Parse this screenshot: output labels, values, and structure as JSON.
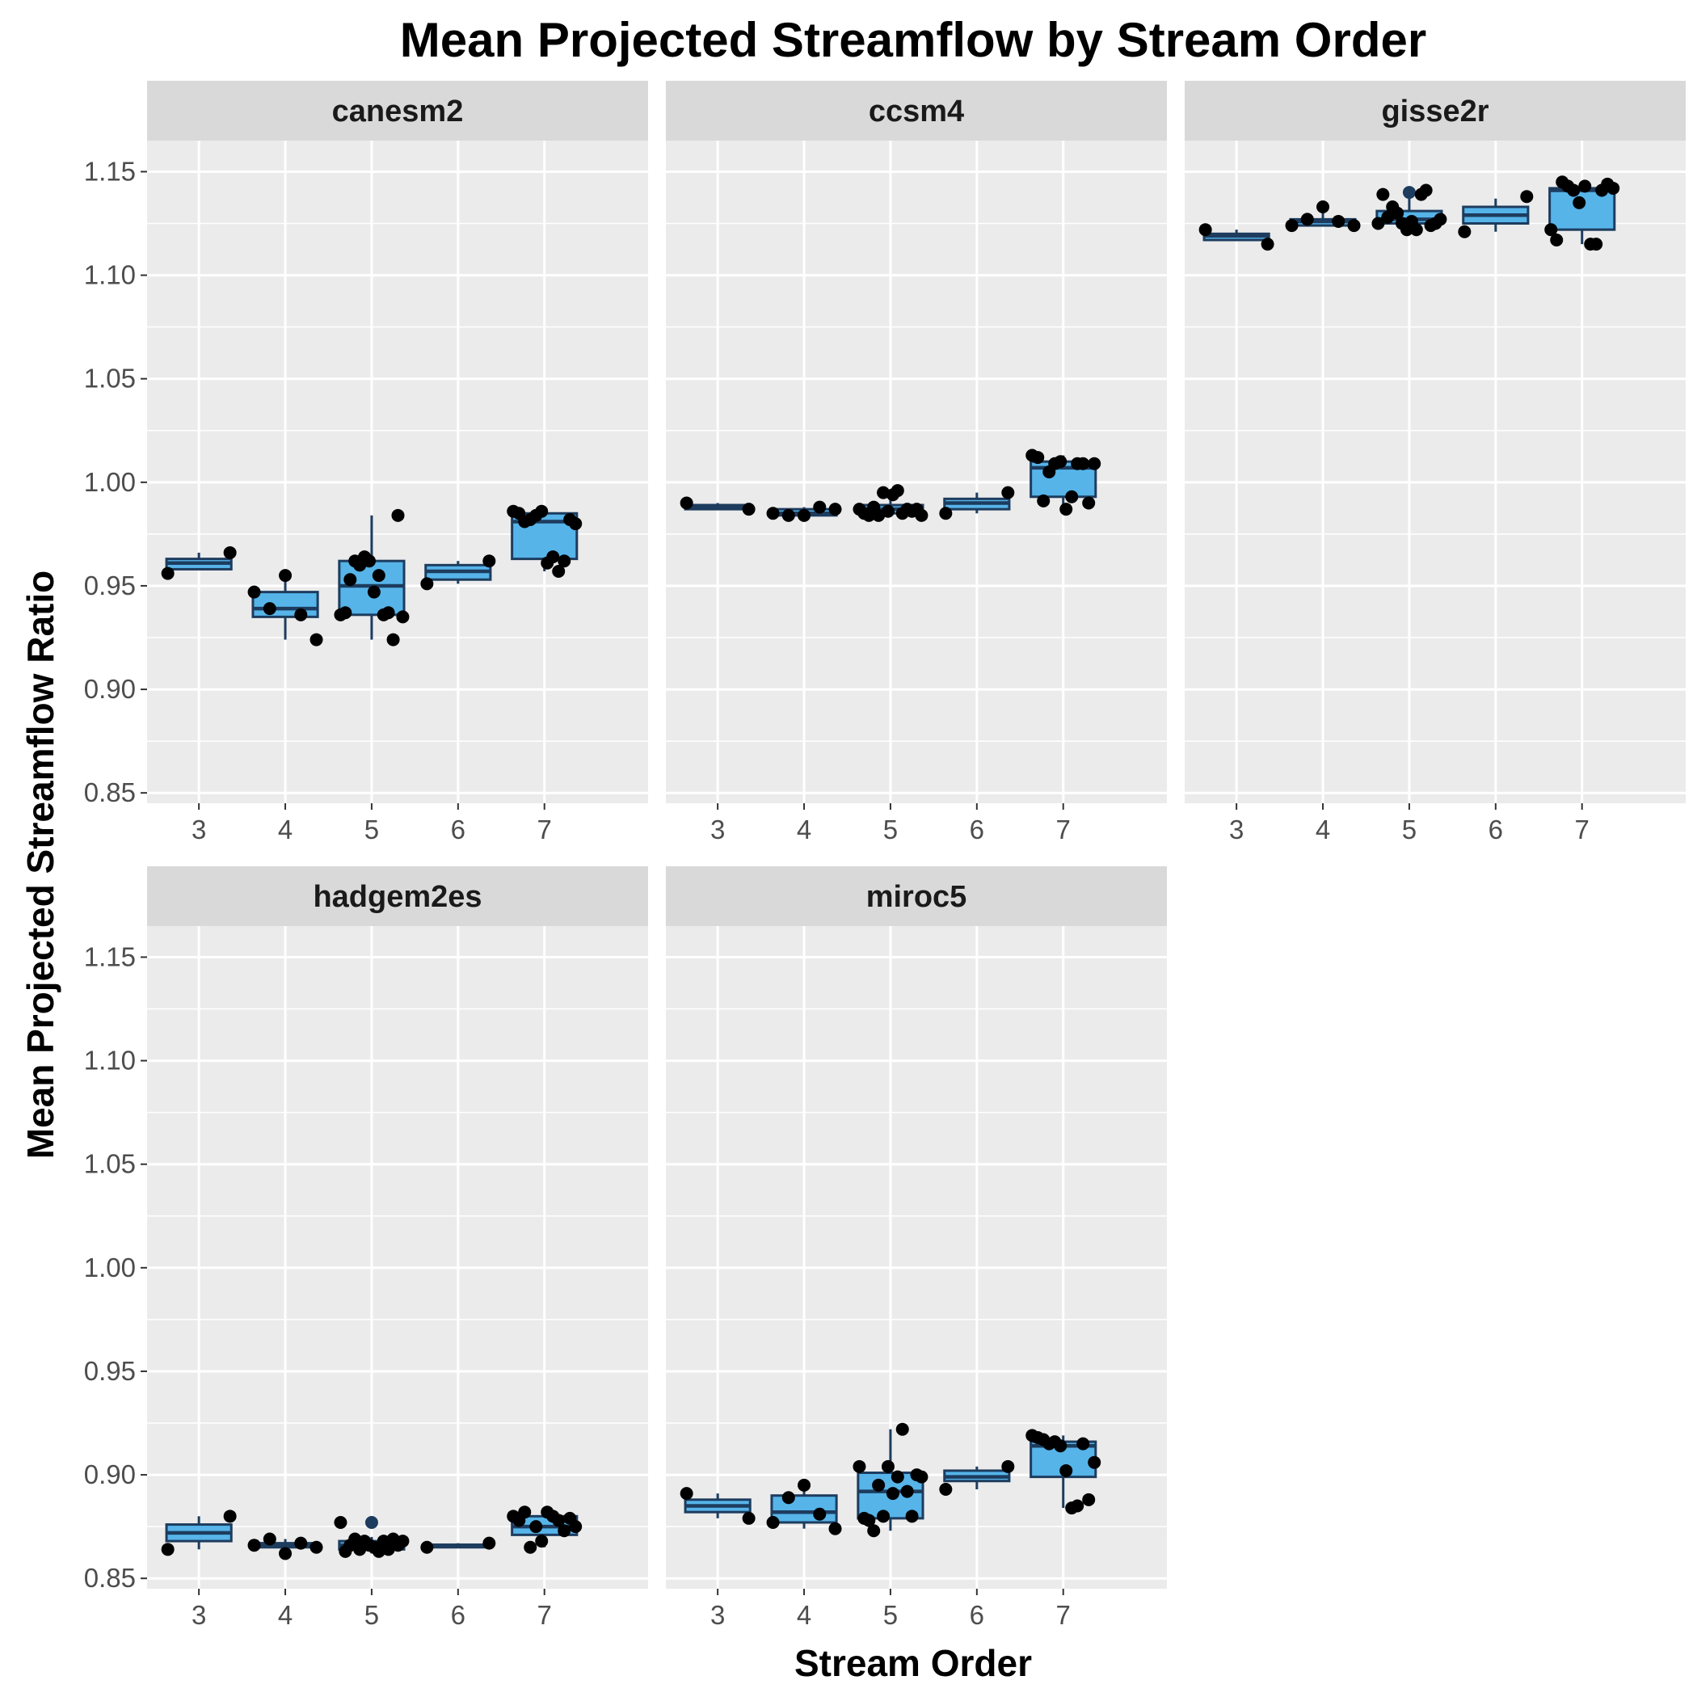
{
  "chart_data": {
    "type": "boxplot",
    "title": "Mean Projected Streamflow by Stream Order",
    "xlabel": "Stream Order",
    "ylabel": "Mean Projected Streamflow Ratio",
    "categories": [
      "3",
      "4",
      "5",
      "6",
      "7"
    ],
    "ylim": [
      0.845,
      1.165
    ],
    "yticks": [
      0.85,
      0.9,
      0.95,
      1.0,
      1.05,
      1.1,
      1.15
    ],
    "ytick_labels": [
      "0.85",
      "0.90",
      "0.95",
      "1.00",
      "1.05",
      "1.10",
      "1.15"
    ],
    "grid": true,
    "colors": {
      "box_fill": "#56B4E9",
      "box_line": "#1d3c5e",
      "outlier": "#1d3c5e",
      "points": "#000000",
      "panel_bg": "#ebebeb",
      "strip_bg": "#d9d9d9",
      "grid": "#ffffff"
    },
    "facets": [
      {
        "name": "canesm2",
        "boxes": [
          {
            "x": "3",
            "q1": 0.958,
            "median": 0.961,
            "q3": 0.963,
            "lower": 0.958,
            "upper": 0.966
          },
          {
            "x": "4",
            "q1": 0.935,
            "median": 0.939,
            "q3": 0.947,
            "lower": 0.924,
            "upper": 0.955
          },
          {
            "x": "5",
            "q1": 0.936,
            "median": 0.95,
            "q3": 0.962,
            "lower": 0.924,
            "upper": 0.984
          },
          {
            "x": "6",
            "q1": 0.953,
            "median": 0.957,
            "q3": 0.96,
            "lower": 0.951,
            "upper": 0.962
          },
          {
            "x": "7",
            "q1": 0.963,
            "median": 0.981,
            "q3": 0.985,
            "lower": 0.957,
            "upper": 0.986
          }
        ],
        "points": [
          {
            "x": "3",
            "y": [
              0.956,
              0.966
            ]
          },
          {
            "x": "4",
            "y": [
              0.947,
              0.939,
              0.955,
              0.936,
              0.924
            ]
          },
          {
            "x": "5",
            "y": [
              0.936,
              0.937,
              0.953,
              0.962,
              0.96,
              0.964,
              0.962,
              0.947,
              0.955,
              0.936,
              0.937,
              0.924,
              0.984,
              0.935
            ]
          },
          {
            "x": "6",
            "y": [
              0.951,
              0.962
            ]
          },
          {
            "x": "7",
            "y": [
              0.986,
              0.985,
              0.981,
              0.982,
              0.984,
              0.986,
              0.961,
              0.964,
              0.957,
              0.962,
              0.982,
              0.98
            ]
          }
        ],
        "outliers": []
      },
      {
        "name": "ccsm4",
        "boxes": [
          {
            "x": "3",
            "q1": 0.987,
            "median": 0.988,
            "q3": 0.989,
            "lower": 0.987,
            "upper": 0.99
          },
          {
            "x": "4",
            "q1": 0.984,
            "median": 0.985,
            "q3": 0.987,
            "lower": 0.984,
            "upper": 0.988
          },
          {
            "x": "5",
            "q1": 0.985,
            "median": 0.987,
            "q3": 0.989,
            "lower": 0.984,
            "upper": 0.996
          },
          {
            "x": "6",
            "q1": 0.987,
            "median": 0.99,
            "q3": 0.992,
            "lower": 0.985,
            "upper": 0.995
          },
          {
            "x": "7",
            "q1": 0.993,
            "median": 1.007,
            "q3": 1.01,
            "lower": 0.987,
            "upper": 1.013
          }
        ],
        "points": [
          {
            "x": "3",
            "y": [
              0.99,
              0.987
            ]
          },
          {
            "x": "4",
            "y": [
              0.985,
              0.984,
              0.984,
              0.988,
              0.987
            ]
          },
          {
            "x": "5",
            "y": [
              0.987,
              0.985,
              0.984,
              0.988,
              0.984,
              0.995,
              0.986,
              0.994,
              0.996,
              0.985,
              0.987,
              0.986,
              0.987,
              0.984
            ]
          },
          {
            "x": "6",
            "y": [
              0.985,
              0.995
            ]
          },
          {
            "x": "7",
            "y": [
              1.013,
              1.012,
              0.991,
              1.005,
              1.009,
              1.01,
              0.987,
              0.993,
              1.009,
              1.009,
              0.99,
              1.009
            ]
          }
        ],
        "outliers": []
      },
      {
        "name": "gisse2r",
        "boxes": [
          {
            "x": "3",
            "q1": 1.117,
            "median": 1.119,
            "q3": 1.12,
            "lower": 1.117,
            "upper": 1.122
          },
          {
            "x": "4",
            "q1": 1.124,
            "median": 1.126,
            "q3": 1.127,
            "lower": 1.124,
            "upper": 1.133
          },
          {
            "x": "5",
            "q1": 1.125,
            "median": 1.127,
            "q3": 1.131,
            "lower": 1.121,
            "upper": 1.14
          },
          {
            "x": "6",
            "q1": 1.125,
            "median": 1.129,
            "q3": 1.133,
            "lower": 1.121,
            "upper": 1.137
          },
          {
            "x": "7",
            "q1": 1.122,
            "median": 1.141,
            "q3": 1.142,
            "lower": 1.115,
            "upper": 1.145
          }
        ],
        "points": [
          {
            "x": "3",
            "y": [
              1.122,
              1.115
            ]
          },
          {
            "x": "4",
            "y": [
              1.124,
              1.127,
              1.133,
              1.126,
              1.124
            ]
          },
          {
            "x": "5",
            "y": [
              1.125,
              1.139,
              1.128,
              1.133,
              1.13,
              1.125,
              1.122,
              1.126,
              1.122,
              1.139,
              1.141,
              1.124,
              1.125,
              1.127
            ]
          },
          {
            "x": "6",
            "y": [
              1.121,
              1.138
            ]
          },
          {
            "x": "7",
            "y": [
              1.122,
              1.117,
              1.145,
              1.143,
              1.141,
              1.135,
              1.143,
              1.115,
              1.115,
              1.141,
              1.144,
              1.142
            ]
          }
        ],
        "outliers": [
          {
            "x": "5",
            "y": 1.14
          }
        ]
      },
      {
        "name": "hadgem2es",
        "boxes": [
          {
            "x": "3",
            "q1": 0.868,
            "median": 0.872,
            "q3": 0.876,
            "lower": 0.864,
            "upper": 0.88
          },
          {
            "x": "4",
            "q1": 0.865,
            "median": 0.866,
            "q3": 0.867,
            "lower": 0.862,
            "upper": 0.869
          },
          {
            "x": "5",
            "q1": 0.864,
            "median": 0.866,
            "q3": 0.868,
            "lower": 0.862,
            "upper": 0.87
          },
          {
            "x": "6",
            "q1": 0.865,
            "median": 0.866,
            "q3": 0.866,
            "lower": 0.865,
            "upper": 0.867
          },
          {
            "x": "7",
            "q1": 0.871,
            "median": 0.875,
            "q3": 0.88,
            "lower": 0.865,
            "upper": 0.882
          }
        ],
        "points": [
          {
            "x": "3",
            "y": [
              0.864,
              0.88
            ]
          },
          {
            "x": "4",
            "y": [
              0.866,
              0.869,
              0.862,
              0.867,
              0.865
            ]
          },
          {
            "x": "5",
            "y": [
              0.877,
              0.863,
              0.866,
              0.869,
              0.864,
              0.868,
              0.866,
              0.865,
              0.863,
              0.868,
              0.864,
              0.869,
              0.866,
              0.868
            ]
          },
          {
            "x": "6",
            "y": [
              0.865,
              0.867
            ]
          },
          {
            "x": "7",
            "y": [
              0.88,
              0.878,
              0.882,
              0.865,
              0.875,
              0.868,
              0.882,
              0.88,
              0.878,
              0.873,
              0.879,
              0.875
            ]
          }
        ],
        "outliers": [
          {
            "x": "5",
            "y": 0.877
          }
        ]
      },
      {
        "name": "miroc5",
        "boxes": [
          {
            "x": "3",
            "q1": 0.882,
            "median": 0.885,
            "q3": 0.888,
            "lower": 0.879,
            "upper": 0.891
          },
          {
            "x": "4",
            "q1": 0.877,
            "median": 0.882,
            "q3": 0.89,
            "lower": 0.874,
            "upper": 0.895
          },
          {
            "x": "5",
            "q1": 0.879,
            "median": 0.892,
            "q3": 0.901,
            "lower": 0.873,
            "upper": 0.922
          },
          {
            "x": "6",
            "q1": 0.897,
            "median": 0.899,
            "q3": 0.902,
            "lower": 0.893,
            "upper": 0.904
          },
          {
            "x": "7",
            "q1": 0.899,
            "median": 0.914,
            "q3": 0.916,
            "lower": 0.884,
            "upper": 0.919
          }
        ],
        "points": [
          {
            "x": "3",
            "y": [
              0.891,
              0.879
            ]
          },
          {
            "x": "4",
            "y": [
              0.877,
              0.889,
              0.895,
              0.881,
              0.874
            ]
          },
          {
            "x": "5",
            "y": [
              0.904,
              0.879,
              0.878,
              0.873,
              0.895,
              0.88,
              0.904,
              0.891,
              0.899,
              0.922,
              0.892,
              0.88,
              0.9,
              0.899
            ]
          },
          {
            "x": "6",
            "y": [
              0.893,
              0.904
            ]
          },
          {
            "x": "7",
            "y": [
              0.919,
              0.918,
              0.917,
              0.915,
              0.916,
              0.914,
              0.902,
              0.884,
              0.885,
              0.915,
              0.888,
              0.906
            ]
          }
        ],
        "outliers": []
      }
    ]
  }
}
